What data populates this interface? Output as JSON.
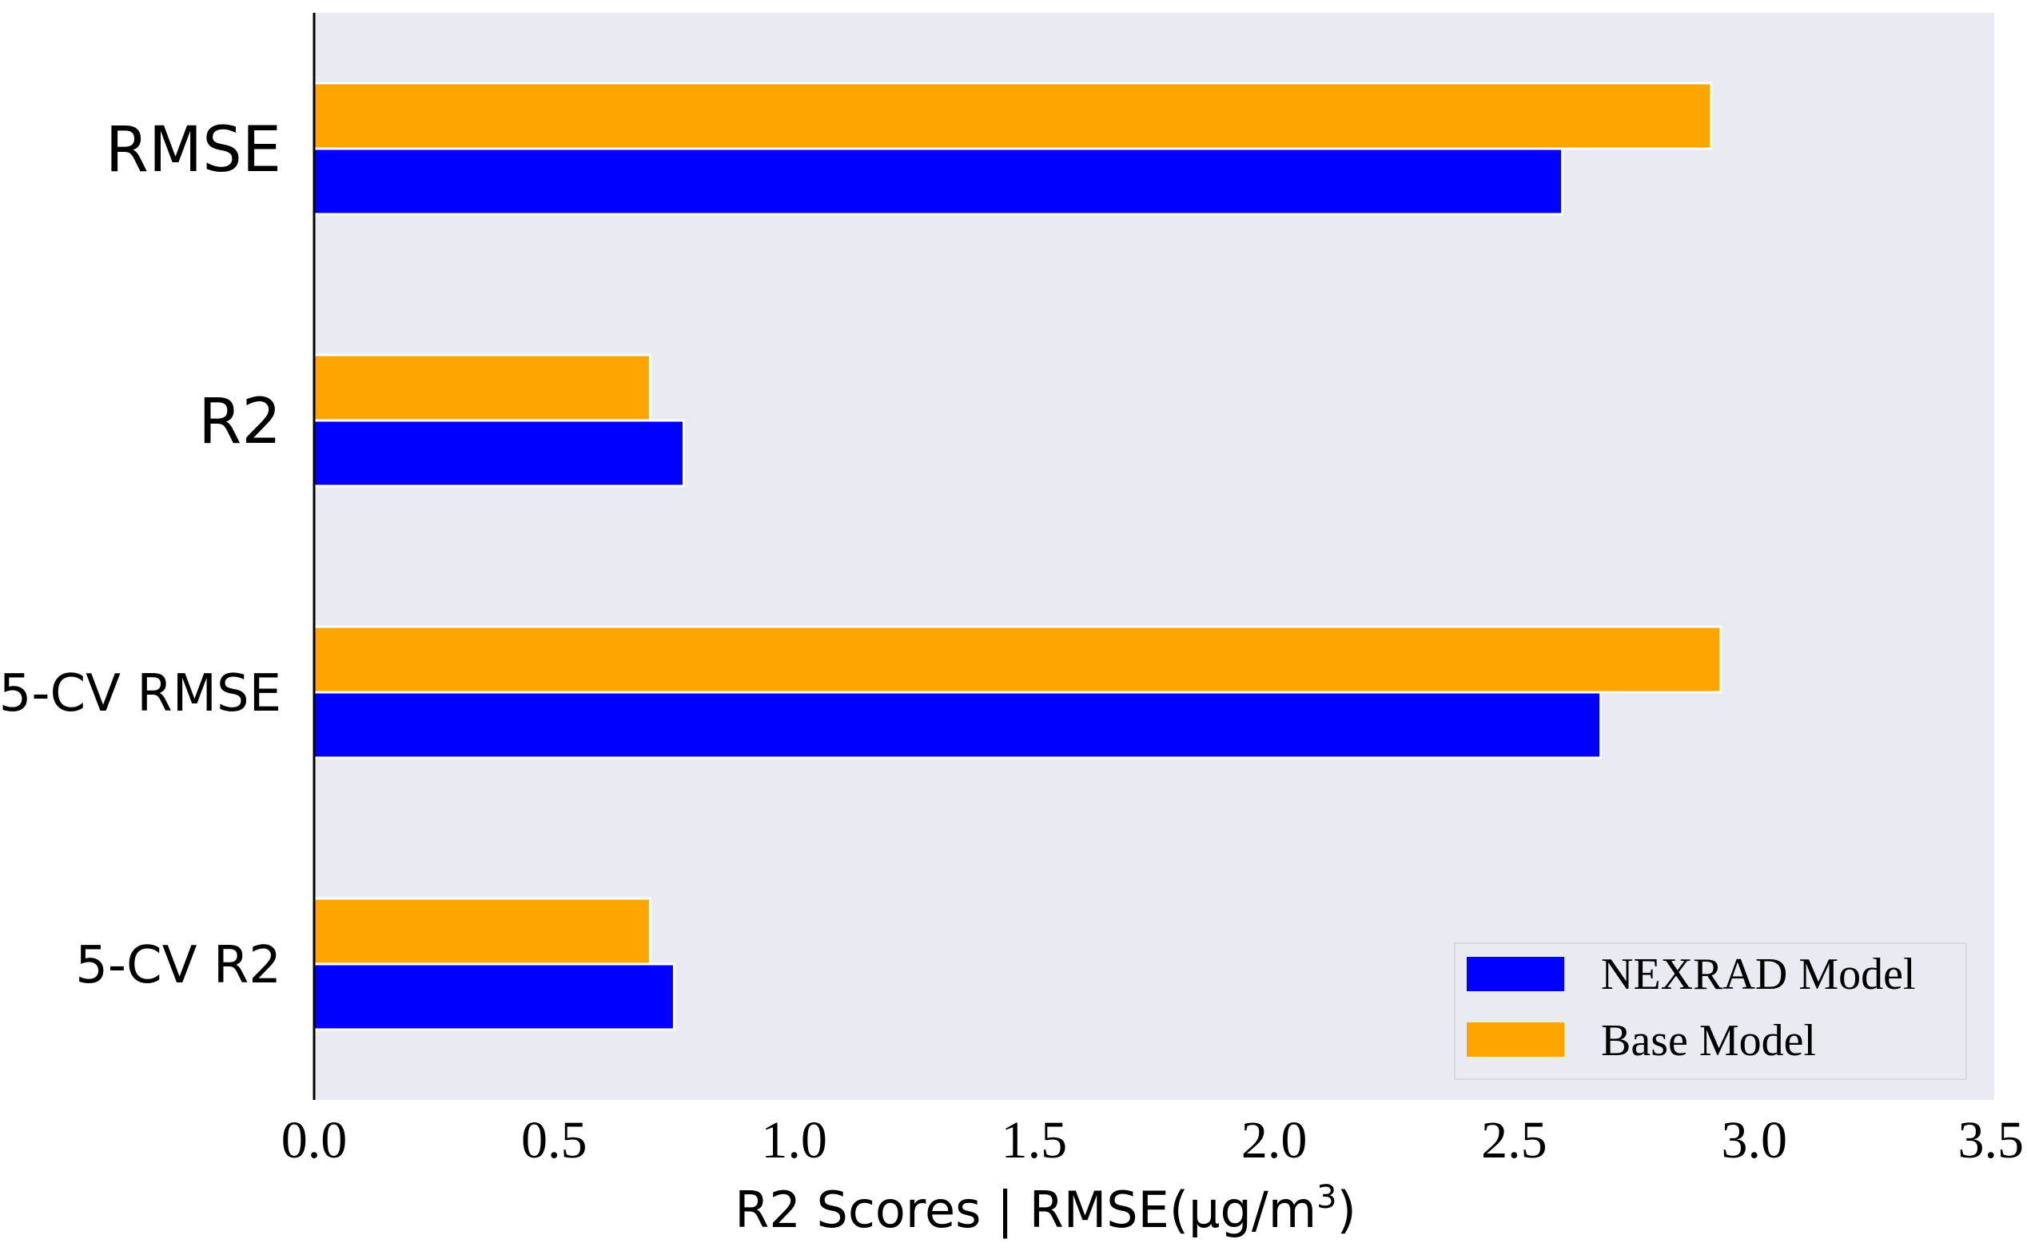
{
  "chart_data": {
    "type": "bar",
    "orientation": "horizontal",
    "categories": [
      "RMSE",
      "R2",
      "5-CV RMSE",
      "5-CV R2"
    ],
    "series": [
      {
        "name": "NEXRAD Model",
        "color": "#0000ff",
        "values": [
          2.6,
          0.77,
          2.68,
          0.75
        ]
      },
      {
        "name": "Base Model",
        "color": "#ffa500",
        "values": [
          2.91,
          0.7,
          2.93,
          0.7
        ]
      }
    ],
    "xlabel_main": "R2 Scores | RMSE(μg/m",
    "xlabel_sup": "3",
    "xlabel_end": ")",
    "xlim": [
      0,
      3.5
    ],
    "xticks": [
      "0.0",
      "0.5",
      "1.0",
      "1.5",
      "2.0",
      "2.5",
      "3.0",
      "3.5"
    ],
    "legend_position": "bottom-right",
    "plot_background": "#eaeaf2",
    "grid": false
  }
}
